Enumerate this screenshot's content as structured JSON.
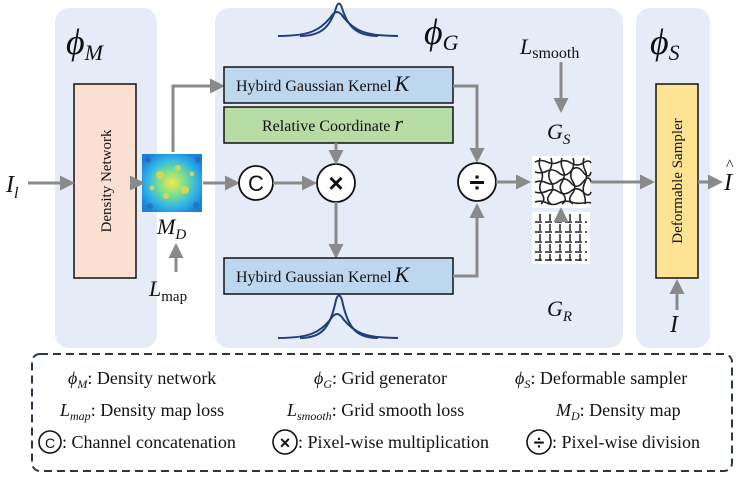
{
  "modules": {
    "phi_m": {
      "symbol": "ϕ",
      "sub": "M"
    },
    "phi_g": {
      "symbol": "ϕ",
      "sub": "G"
    },
    "phi_s": {
      "symbol": "ϕ",
      "sub": "S"
    }
  },
  "blocks": {
    "density_network": "Density Network",
    "hgk_top": "Hybird Gaussian Kernel",
    "hgk_bottom": "Hybird Gaussian Kernel",
    "kernel_symbol": "K",
    "relative_coord": "Relative Coordinate",
    "relative_coord_symbol": "r",
    "deformable_sampler": "Deformable Sampler"
  },
  "ops": {
    "concat": "C",
    "multiply": "×",
    "divide": "÷"
  },
  "variables": {
    "input": {
      "base": "I",
      "sub": "l"
    },
    "output": {
      "base": "I",
      "hat": "^"
    },
    "sampler_input": "I",
    "density_map": {
      "base": "M",
      "sub": "D"
    },
    "map_loss": {
      "base": "L",
      "sub": "map"
    },
    "smooth_loss": {
      "base": "L",
      "sub": "smooth"
    },
    "grid_s": {
      "base": "G",
      "sub": "S"
    },
    "grid_r": {
      "base": "G",
      "sub": "R"
    }
  },
  "legend": {
    "rows": [
      [
        {
          "sym": "ϕ",
          "sub": "M",
          "text": ": Density network"
        },
        {
          "sym": "ϕ",
          "sub": "G",
          "text": ": Grid generator"
        },
        {
          "sym": "ϕ",
          "sub": "S",
          "text": ": Deformable sampler"
        }
      ],
      [
        {
          "sym": "L",
          "sub": "map",
          "text": ": Density map loss"
        },
        {
          "sym": "L",
          "sub": "smooth",
          "text": ": Grid smooth loss"
        },
        {
          "sym": "M",
          "sub": "D",
          "text": ": Density map"
        }
      ],
      [
        {
          "op": "C",
          "text": ": Channel concatenation"
        },
        {
          "op": "×",
          "text": ": Pixel-wise multiplication"
        },
        {
          "op": "÷",
          "text": ": Pixel-wise division"
        }
      ]
    ]
  },
  "colors": {
    "panel_bg": "#e6ecf7",
    "density_fill": "#fbe0d2",
    "hgk_fill": "#bdd7ee",
    "coord_fill": "#b8dca6",
    "sampler_fill": "#fde393",
    "arrow": "#8a8a8a"
  }
}
